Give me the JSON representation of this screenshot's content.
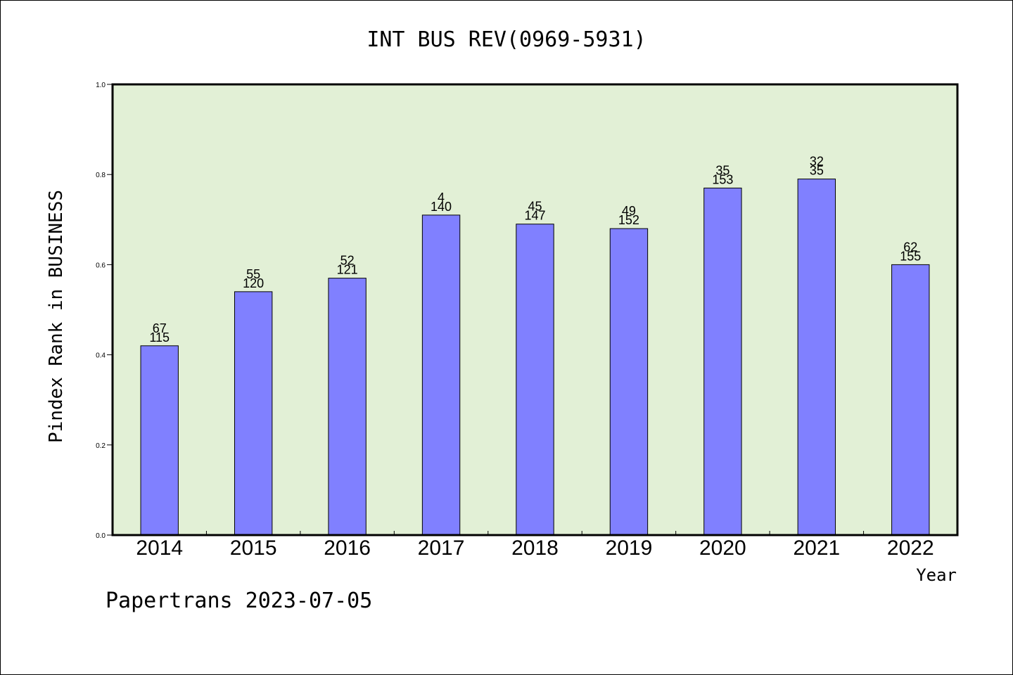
{
  "chart_data": {
    "type": "bar",
    "title": "INT BUS REV(0969-5931)",
    "ylabel": "Pindex Rank in BUSINESS",
    "xlabel": "Year",
    "footer": "Papertrans 2023-07-05",
    "ylim": [
      0,
      1.0
    ],
    "yticks": [
      "0.0",
      "0.2",
      "0.4",
      "0.6",
      "0.8",
      "1.0"
    ],
    "categories": [
      "2014",
      "2015",
      "2016",
      "2017",
      "2018",
      "2019",
      "2020",
      "2021",
      "2022"
    ],
    "values": [
      0.42,
      0.54,
      0.57,
      0.71,
      0.69,
      0.68,
      0.77,
      0.79,
      0.6
    ],
    "label_top": [
      "67",
      "55",
      "52",
      "4",
      "45",
      "49",
      "35",
      "32",
      "62"
    ],
    "label_bottom": [
      "115",
      "120",
      "121",
      "140",
      "147",
      "152",
      "153",
      "35",
      "155"
    ],
    "colors": {
      "bar": "#8080ff",
      "plot_bg": "#e2f0d6",
      "axis": "#000000"
    },
    "grid": false,
    "legend": "none"
  }
}
